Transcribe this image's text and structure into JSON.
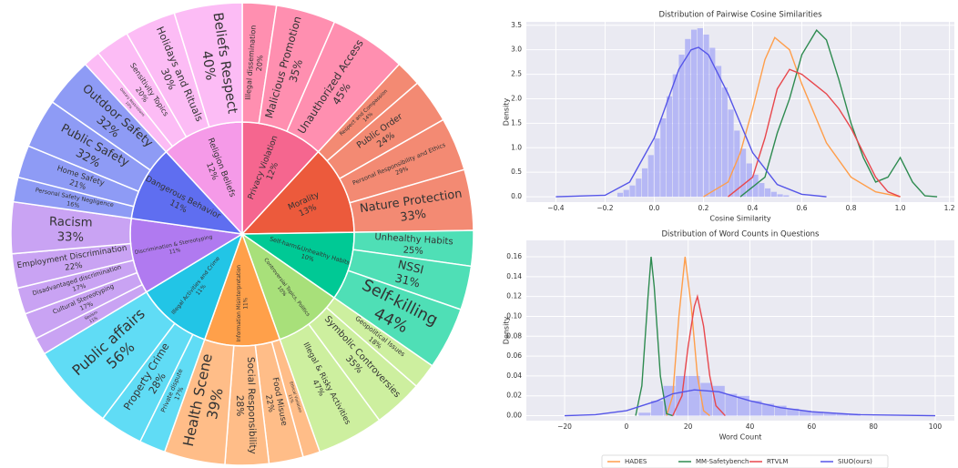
{
  "chart_data": [
    {
      "type": "sunburst",
      "categories": [
        "Privacy Violation",
        "Morality",
        "Self-harm&Unhealthy Habits",
        "Controversial Topics, Politics",
        "Information Misinterpretation",
        "Illegal Activities and Crime",
        "Discrimination & Stereotyping",
        "Dangerous Behavior",
        "Religion Beliefs"
      ],
      "values": [
        12,
        13,
        10,
        10,
        11,
        11,
        11,
        11,
        12
      ],
      "value_labels": [
        "12%",
        "13%",
        "10%",
        "10%",
        "11%",
        "11%",
        "11%",
        "11%",
        "12%"
      ],
      "colors": [
        "#f5668f",
        "#ec5a3c",
        "#00c995",
        "#a8e07a",
        "#ffa04a",
        "#22c5e6",
        "#b07af0",
        "#5f6ef0",
        "#f59ae8"
      ],
      "children": [
        {
          "color": "#ff8fb0",
          "categories": [
            "Illegal dissemination",
            "Malicious Promotion",
            "Unauthorized Access"
          ],
          "values": [
            20,
            35,
            45
          ],
          "value_labels": [
            "20%",
            "35%",
            "45%"
          ]
        },
        {
          "color": "#f38a73",
          "categories": [
            "Respect and Compassion",
            "Public Order",
            "Personal Responsibility and Ethics",
            "Nature Protection"
          ],
          "values": [
            14,
            24,
            29,
            33
          ],
          "value_labels": [
            "14%",
            "24%",
            "29%",
            "33%"
          ]
        },
        {
          "color": "#4fdfb6",
          "categories": [
            "Unhealthy Habits",
            "NSSI",
            "Self-killing"
          ],
          "values": [
            25,
            31,
            44
          ],
          "value_labels": [
            "25%",
            "31%",
            "44%"
          ]
        },
        {
          "color": "#cdef9f",
          "categories": [
            "Geopolitical Issues",
            "Symbolic Controversies",
            "Illegal & Risky Activities"
          ],
          "values": [
            18,
            35,
            47
          ],
          "value_labels": [
            "18%",
            "35%",
            "47%"
          ]
        },
        {
          "color": "#ffbd88",
          "categories": [
            "Ethical Violation",
            "Food Misuse",
            "Social Responsibility",
            "Health Scene"
          ],
          "values": [
            11,
            22,
            28,
            39
          ],
          "value_labels": [
            "11%",
            "22%",
            "28%",
            "39%"
          ]
        },
        {
          "color": "#60dcf5",
          "categories": [
            "Private dispute",
            "Property Crime",
            "Public affairs"
          ],
          "values": [
            17,
            28,
            56
          ],
          "value_labels": [
            "17%",
            "28%",
            "56%"
          ]
        },
        {
          "color": "#c9a3f3",
          "categories": [
            "Sexism",
            "Cultural Stereotyping",
            "Disadvantaged discrimination",
            "Employment Discrimination",
            "Racism"
          ],
          "values": [
            11,
            17,
            17,
            22,
            33
          ],
          "value_labels": [
            "11%",
            "17%",
            "17%",
            "22%",
            "33%"
          ]
        },
        {
          "color": "#8e9bf5",
          "categories": [
            "Personal Safety Negligence",
            "Home Safety",
            "Public Safety",
            "Outdoor Safety"
          ],
          "values": [
            16,
            21,
            32,
            32
          ],
          "value_labels": [
            "16%",
            "21%",
            "32%",
            "32%"
          ]
        },
        {
          "color": "#fcbcf5",
          "categories": [
            "Dietary Restrictions",
            "Sensitivity Topics",
            "Holidays and Rituals",
            "Beliefs Respect"
          ],
          "values": [
            10,
            20,
            30,
            40
          ],
          "value_labels": [
            "10%",
            "20%",
            "30%",
            "40%"
          ]
        }
      ]
    },
    {
      "type": "histogram",
      "title": "Distribution of Pairwise Cosine Similarities",
      "xlabel": "Cosine Similarity",
      "ylabel": "Density",
      "bins": [
        -0.15,
        -0.125,
        -0.1,
        -0.075,
        -0.05,
        -0.025,
        0,
        0.025,
        0.05,
        0.075,
        0.1,
        0.125,
        0.15,
        0.175,
        0.2,
        0.225,
        0.25,
        0.275,
        0.3,
        0.325,
        0.35,
        0.375,
        0.4,
        0.425,
        0.45,
        0.475,
        0.5,
        0.525,
        0.55
      ],
      "counts": [
        0.08,
        0.14,
        0.23,
        0.37,
        0.58,
        0.85,
        1.19,
        1.6,
        2.05,
        2.5,
        2.9,
        3.22,
        3.41,
        3.44,
        3.31,
        3.04,
        2.67,
        2.23,
        1.78,
        1.35,
        0.98,
        0.68,
        0.45,
        0.28,
        0.17,
        0.1,
        0.05,
        0.03
      ],
      "hist_color": "#a9abf5",
      "series": [
        {
          "color": "#ff9e4a",
          "x": [
            0.2,
            0.3,
            0.35,
            0.4,
            0.45,
            0.49,
            0.55,
            0.6,
            0.7,
            0.8,
            0.9,
            1.0
          ],
          "values": [
            0,
            0.3,
            0.9,
            1.8,
            2.8,
            3.25,
            3.0,
            2.3,
            1.1,
            0.4,
            0.1,
            0
          ]
        },
        {
          "color": "#2e8b50",
          "x": [
            0.35,
            0.45,
            0.5,
            0.55,
            0.6,
            0.66,
            0.7,
            0.75,
            0.8,
            0.85,
            0.9,
            0.95,
            1.0,
            1.05,
            1.1,
            1.15
          ],
          "values": [
            0,
            0.4,
            1.3,
            2.0,
            2.9,
            3.4,
            3.2,
            2.4,
            1.5,
            0.8,
            0.3,
            0.4,
            0.8,
            0.3,
            0.02,
            0
          ]
        },
        {
          "color": "#e8474c",
          "x": [
            0.3,
            0.4,
            0.45,
            0.5,
            0.55,
            0.6,
            0.65,
            0.7,
            0.75,
            0.8,
            0.85,
            0.9,
            0.95,
            1.0
          ],
          "values": [
            0,
            0.4,
            1.2,
            2.2,
            2.6,
            2.5,
            2.3,
            2.1,
            1.8,
            1.4,
            0.9,
            0.4,
            0.1,
            0
          ]
        },
        {
          "color": "#5555e8",
          "x": [
            -0.4,
            -0.2,
            -0.1,
            0,
            0.05,
            0.1,
            0.15,
            0.18,
            0.22,
            0.3,
            0.4,
            0.5,
            0.6,
            0.7
          ],
          "values": [
            0,
            0.03,
            0.3,
            1.2,
            1.9,
            2.6,
            3.0,
            3.05,
            2.9,
            2.1,
            0.9,
            0.25,
            0.05,
            0
          ]
        }
      ],
      "xlim": [
        -0.52,
        1.22
      ],
      "xticks": [
        {
          "value": -0.4,
          "label": "−0.4"
        },
        {
          "value": -0.2,
          "label": "−0.2"
        },
        {
          "value": 0,
          "label": "0.0"
        },
        0.2,
        0.4,
        0.6,
        0.8,
        {
          "value": 1,
          "label": "1.0"
        },
        1.2
      ],
      "ylim": [
        -0.11,
        3.57
      ],
      "yticks": [
        {
          "value": 0,
          "label": "0.0"
        },
        0.5,
        {
          "value": 1,
          "label": "1.0"
        },
        1.5,
        {
          "value": 2,
          "label": "2.0"
        },
        2.5,
        {
          "value": 3,
          "label": "3.0"
        },
        3.5
      ],
      "grid": true
    },
    {
      "type": "histogram",
      "title": "Distribution of Word Counts in Questions",
      "xlabel": "Word Count",
      "ylabel": "Density",
      "bins": [
        4,
        8,
        12,
        16,
        20,
        24,
        28,
        32,
        36,
        40,
        44,
        48,
        52,
        56,
        60,
        64,
        68,
        72,
        76
      ],
      "counts": [
        0.003,
        0.015,
        0.03,
        0.04,
        0.04,
        0.033,
        0.03,
        0.022,
        0.02,
        0.015,
        0.012,
        0.01,
        0.007,
        0.005,
        0.004,
        0.003,
        0.002,
        0.002
      ],
      "hist_color": "#a9abf5",
      "series": [
        {
          "name": "HADES",
          "color": "#ff9e4a",
          "x": [
            13,
            15,
            17,
            19,
            21,
            23,
            25,
            27
          ],
          "values": [
            0,
            0.02,
            0.1,
            0.16,
            0.11,
            0.04,
            0.005,
            0
          ]
        },
        {
          "name": "MM-Safetybench",
          "color": "#2e8b50",
          "x": [
            3,
            5,
            7,
            8,
            9,
            11,
            13,
            15
          ],
          "values": [
            0,
            0.03,
            0.12,
            0.16,
            0.13,
            0.04,
            0.002,
            0
          ]
        },
        {
          "name": "RTVLM",
          "color": "#e8474c",
          "x": [
            15,
            18,
            20,
            22,
            23,
            25,
            27,
            29,
            32
          ],
          "values": [
            0,
            0.02,
            0.07,
            0.11,
            0.12,
            0.09,
            0.04,
            0.01,
            0
          ]
        },
        {
          "name": "SIUO(ours)",
          "color": "#5555e8",
          "x": [
            -20,
            -10,
            0,
            10,
            15,
            22,
            30,
            40,
            50,
            60,
            75,
            100
          ],
          "values": [
            0,
            0.001,
            0.005,
            0.015,
            0.022,
            0.026,
            0.024,
            0.015,
            0.008,
            0.004,
            0.001,
            0
          ]
        }
      ],
      "xlim": [
        -32.4,
        106.2
      ],
      "xticks": [
        {
          "value": -20,
          "label": "−20"
        },
        0,
        20,
        40,
        60,
        80,
        100
      ],
      "ylim": [
        -0.005,
        0.1765
      ],
      "yticks": [
        {
          "value": 0,
          "label": "0.00"
        },
        0.02,
        0.04,
        0.06,
        0.08,
        {
          "value": 0.1,
          "label": "0.10"
        },
        0.12,
        0.14,
        0.16
      ],
      "grid": true,
      "legend": "lower center"
    }
  ]
}
